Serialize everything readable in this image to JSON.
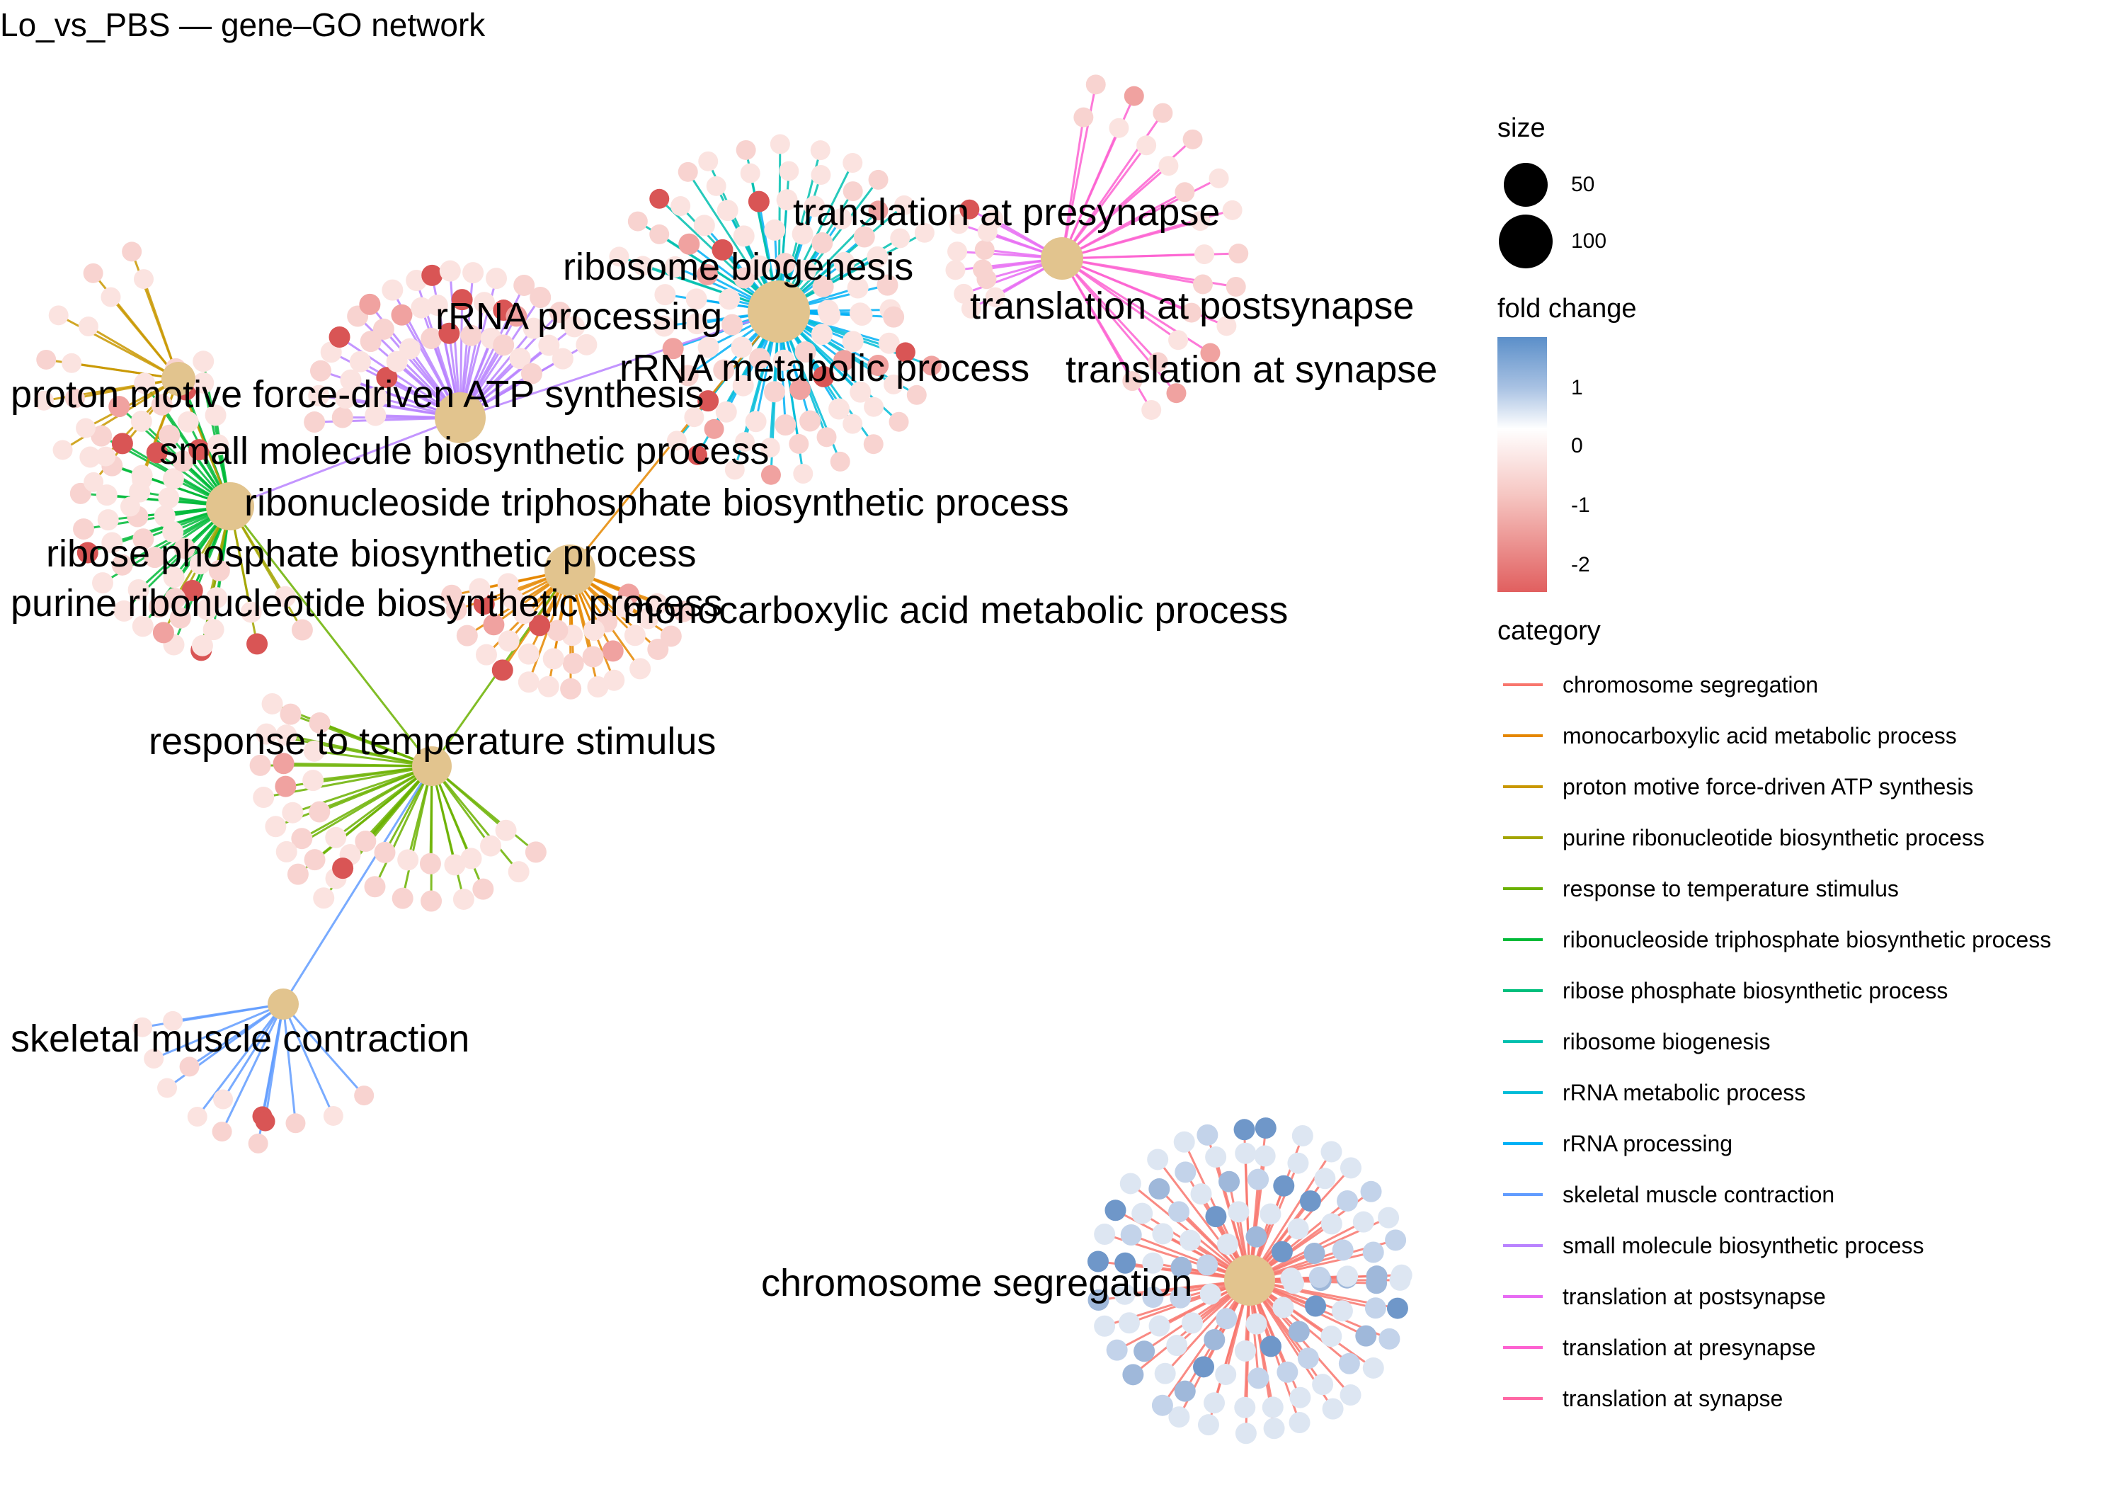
{
  "title": "Lo_vs_PBS — gene–GO network",
  "legend": {
    "size_title": "size",
    "size_items": [
      {
        "label": "50"
      },
      {
        "label": "100"
      }
    ],
    "fold_title": "fold change",
    "fold_ticks": [
      "1",
      "0",
      "-1",
      "-2"
    ],
    "category_title": "category",
    "categories": [
      {
        "name": "chromosome segregation",
        "color": "#f8766d"
      },
      {
        "name": "monocarboxylic acid metabolic process",
        "color": "#e58700"
      },
      {
        "name": "proton motive force-driven ATP synthesis",
        "color": "#c99800"
      },
      {
        "name": "purine ribonucleotide biosynthetic process",
        "color": "#a3a500"
      },
      {
        "name": "response to temperature stimulus",
        "color": "#6bb100"
      },
      {
        "name": "ribonucleoside triphosphate biosynthetic process",
        "color": "#00ba38"
      },
      {
        "name": "ribose phosphate biosynthetic process",
        "color": "#00bf7d"
      },
      {
        "name": "ribosome biogenesis",
        "color": "#00c0af"
      },
      {
        "name": "rRNA metabolic process",
        "color": "#00bcd8"
      },
      {
        "name": "rRNA processing",
        "color": "#00b0f6"
      },
      {
        "name": "skeletal muscle contraction",
        "color": "#619cff"
      },
      {
        "name": "small molecule biosynthetic process",
        "color": "#b983ff"
      },
      {
        "name": "translation at postsynapse",
        "color": "#e76bf3"
      },
      {
        "name": "translation at presynapse",
        "color": "#fd61d1"
      },
      {
        "name": "translation at synapse",
        "color": "#ff67a4"
      }
    ]
  },
  "network": {
    "hub_color": "#e2c48e",
    "node_labels": [
      "translation at presynapse",
      "ribosome biogenesis",
      "translation at postsynapse",
      "rRNA processing",
      "rRNA metabolic process",
      "translation at synapse",
      "proton motive force-driven ATP synthesis",
      "small molecule biosynthetic process",
      "ribonucleoside triphosphate biosynthetic process",
      "ribose phosphate biosynthetic process",
      "purine ribonucleotide biosynthetic process",
      "monocarboxylic acid metabolic process",
      "response to temperature stimulus",
      "skeletal muscle contraction",
      "chromosome segregation"
    ]
  }
}
